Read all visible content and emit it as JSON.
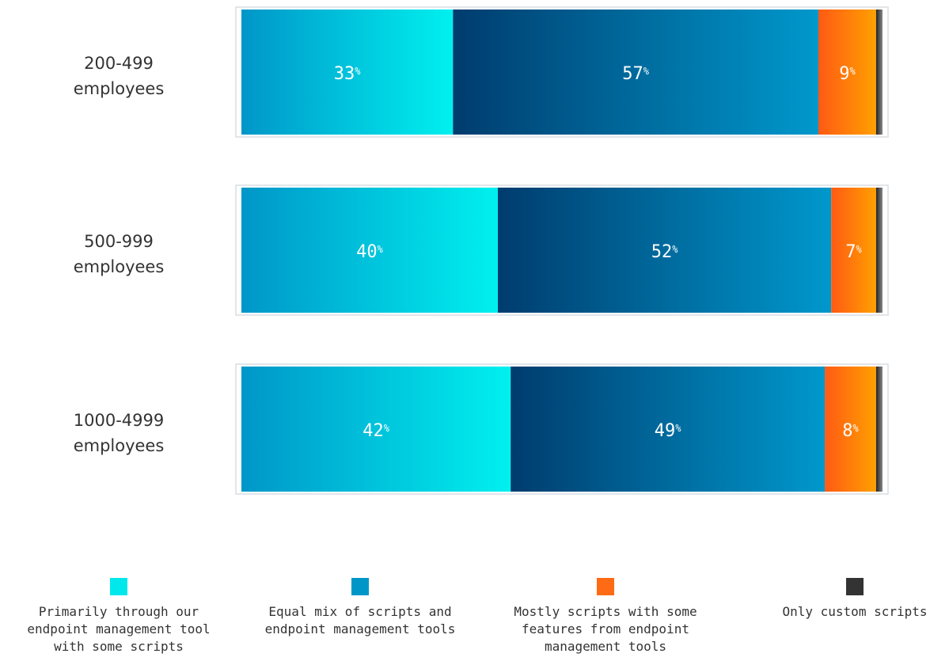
{
  "chart_data": {
    "type": "bar",
    "orientation": "horizontal",
    "stacked": true,
    "categories": [
      "200-499 employees",
      "500-999 employees",
      "1000-4999 employees"
    ],
    "series": [
      {
        "name": "Primarily through our endpoint management tool with some scripts",
        "values": [
          33,
          40,
          42
        ],
        "color": "#00e8ec"
      },
      {
        "name": "Equal mix of scripts and endpoint management tools",
        "values": [
          57,
          52,
          49
        ],
        "color": "#0096c8"
      },
      {
        "name": "Mostly scripts with some features from endpoint management tools",
        "values": [
          9,
          7,
          8
        ],
        "color": "#ff6a14"
      },
      {
        "name": "Only custom scripts",
        "values": [
          1,
          1,
          1
        ],
        "color": "#333333"
      }
    ],
    "value_suffix": "%",
    "legend_position": "bottom",
    "grid": false
  },
  "legend": {
    "items": [
      "Primarily through our endpoint management tool with some scripts",
      "Equal mix of scripts and endpoint management tools",
      "Mostly scripts with some features from endpoint management tools",
      "Only custom scripts"
    ]
  }
}
